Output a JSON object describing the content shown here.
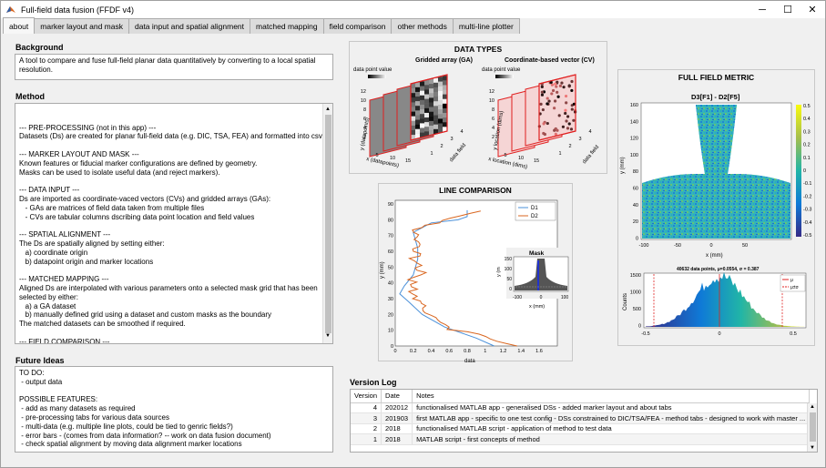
{
  "window": {
    "title": "Full-field data fusion (FFDF v4)",
    "minimize": "─",
    "maximize": "☐",
    "close": "✕"
  },
  "tabs": [
    "about",
    "marker layout and mask",
    "data input and spatial alignment",
    "matched mapping",
    "field comparison",
    "other methods",
    "multi-line plotter"
  ],
  "background": {
    "heading": "Background",
    "text": "A tool to compare and fuse full-field planar data quantitatively by converting to a local spatial\nresolution."
  },
  "method": {
    "heading": "Method",
    "text": "--- PRE-PROCESSING (not in this app) ---\nDatasets (Ds) are created for planar full-field data (e.g. DIC, TSA, FEA) and formatted into csv files.\n\n--- MARKER LAYOUT AND MASK ---\nKnown features or fiducial marker configurations are defined by geometry.\nMasks can be used to isolate useful data (and reject markers).\n\n--- DATA INPUT ---\nDs are imported as coordinate-vaced vectors (CVs) and gridded arrays (GAs):\n   - GAs are matrices of field data taken from multiple files\n   - CVs are tabular columns dscribing data point location and field values\n\n--- SPATIAL ALIGNMENT ---\nThe Ds are spatially aligned by setting either:\n   a) coordinate origin\n   b) datapoint origin and marker locations\n\n--- MATCHED MAPPING ---\nAligned Ds are interpolated with various parameters onto a selected mask grid that has been\nselected by either:\n   a) a GA dataset\n   b) manually defined grid using a dataset and custom masks as the boundary\nThe matched datasets can be smoothed if required.\n\n--- FIELD COMPARISON ---\nThe matched Ds are compared or fused as a field or line cuts by applying various metrics.\n\n--- OTHER METHODS ---\nPost-processing of the matched Ds using other methods in literature:\n   a) Data comparison density grid (ref. CEN 2014)"
  },
  "future": {
    "heading": "Future Ideas",
    "text": "TO DO:\n - output data\n\nPOSSIBLE FEATURES:\n - add as many datasets as required\n - pre-processing tabs for various data sources\n - multi-data (e.g. multiple line plots, could be tied to genric fields?)\n - error bars - (comes from data information? -- work on data fusion document)\n - check spatial alignment by moving data alignment marker locations"
  },
  "data_types": {
    "title": "DATA TYPES",
    "ga": {
      "title": "Gridded array (GA)",
      "colorbar_label": "data point value",
      "ylabel": "y (datapoints)",
      "xlabel": "x (datapoints)",
      "zlabel": "data field",
      "yticks": [
        "12",
        "10",
        "8",
        "6",
        "4",
        "2"
      ],
      "xticks": [
        "5",
        "10",
        "15"
      ],
      "zticks": [
        "1",
        "2",
        "3",
        "4"
      ]
    },
    "cv": {
      "title": "Coordinate-based vector (CV)",
      "colorbar_label": "data point value",
      "ylabel": "y location (dims)",
      "xlabel": "x location (dims)",
      "zlabel": "data field",
      "yticks": [
        "12",
        "10",
        "8",
        "6",
        "4",
        "2"
      ],
      "xticks": [
        "5",
        "10",
        "15"
      ],
      "zticks": [
        "1",
        "2",
        "3",
        "4"
      ]
    }
  },
  "line_comparison": {
    "title": "LINE COMPARISON",
    "legend": [
      "D1",
      "D2"
    ],
    "ylabel": "y (mm)",
    "xlabel": "data",
    "yticks": [
      "90",
      "80",
      "70",
      "60",
      "50",
      "40",
      "30",
      "20",
      "10",
      "0"
    ],
    "xticks": [
      "0",
      "0.2",
      "0.4",
      "0.6",
      "0.8",
      "1",
      "1.2",
      "1.4",
      "1.6"
    ],
    "inset": {
      "title": "Mask",
      "ylabel": "y (m",
      "xlabel": "x (mm)",
      "yticks": [
        "150",
        "100",
        "50",
        "0"
      ],
      "xticks": [
        "-100",
        "0",
        "100"
      ]
    }
  },
  "full_field": {
    "title": "FULL FIELD METRIC",
    "plot_title": "D3[F1] - D2[F5]",
    "ylabel": "y (mm)",
    "xlabel": "x (mm)",
    "yticks": [
      "160",
      "140",
      "120",
      "100",
      "80",
      "60",
      "40",
      "20",
      "0"
    ],
    "xticks": [
      "-100",
      "-50",
      "0",
      "50"
    ],
    "cbar_ticks": [
      "0.5",
      "0.4",
      "0.3",
      "0.2",
      "0.1",
      "0",
      "-0.1",
      "-0.2",
      "-0.3",
      "-0.4",
      "-0.5"
    ],
    "hist": {
      "title": "40632 data points, μ=0.0554, σ = 0.387",
      "ylabel": "Counts",
      "yticks": [
        "1500",
        "1000",
        "500",
        "0"
      ],
      "xticks": [
        "-0.5",
        "0",
        "0.5"
      ],
      "legend": [
        "μ",
        "μ±σ"
      ]
    }
  },
  "version_log": {
    "heading": "Version Log",
    "columns": [
      "Version",
      "Date",
      "Notes"
    ],
    "rows": [
      {
        "version": "4",
        "date": "202012",
        "notes": "functionalised MATLAB app - generalised DSs - added marker layout and about tabs"
      },
      {
        "version": "3",
        "date": "201903",
        "notes": "first MATLAB app - specific to one test config - DSs constrained to DIC/TSA/FEA - method tabs - designed to work with master ..."
      },
      {
        "version": "2",
        "date": "2018",
        "notes": "functionalised MATLAB script - application of method to test data"
      },
      {
        "version": "1",
        "date": "2018",
        "notes": "MATLAB script - first concepts of method"
      }
    ]
  },
  "colors": {
    "accent_red": "#e02020",
    "d1_blue": "#4a90d9",
    "d2_orange": "#d9661f"
  }
}
